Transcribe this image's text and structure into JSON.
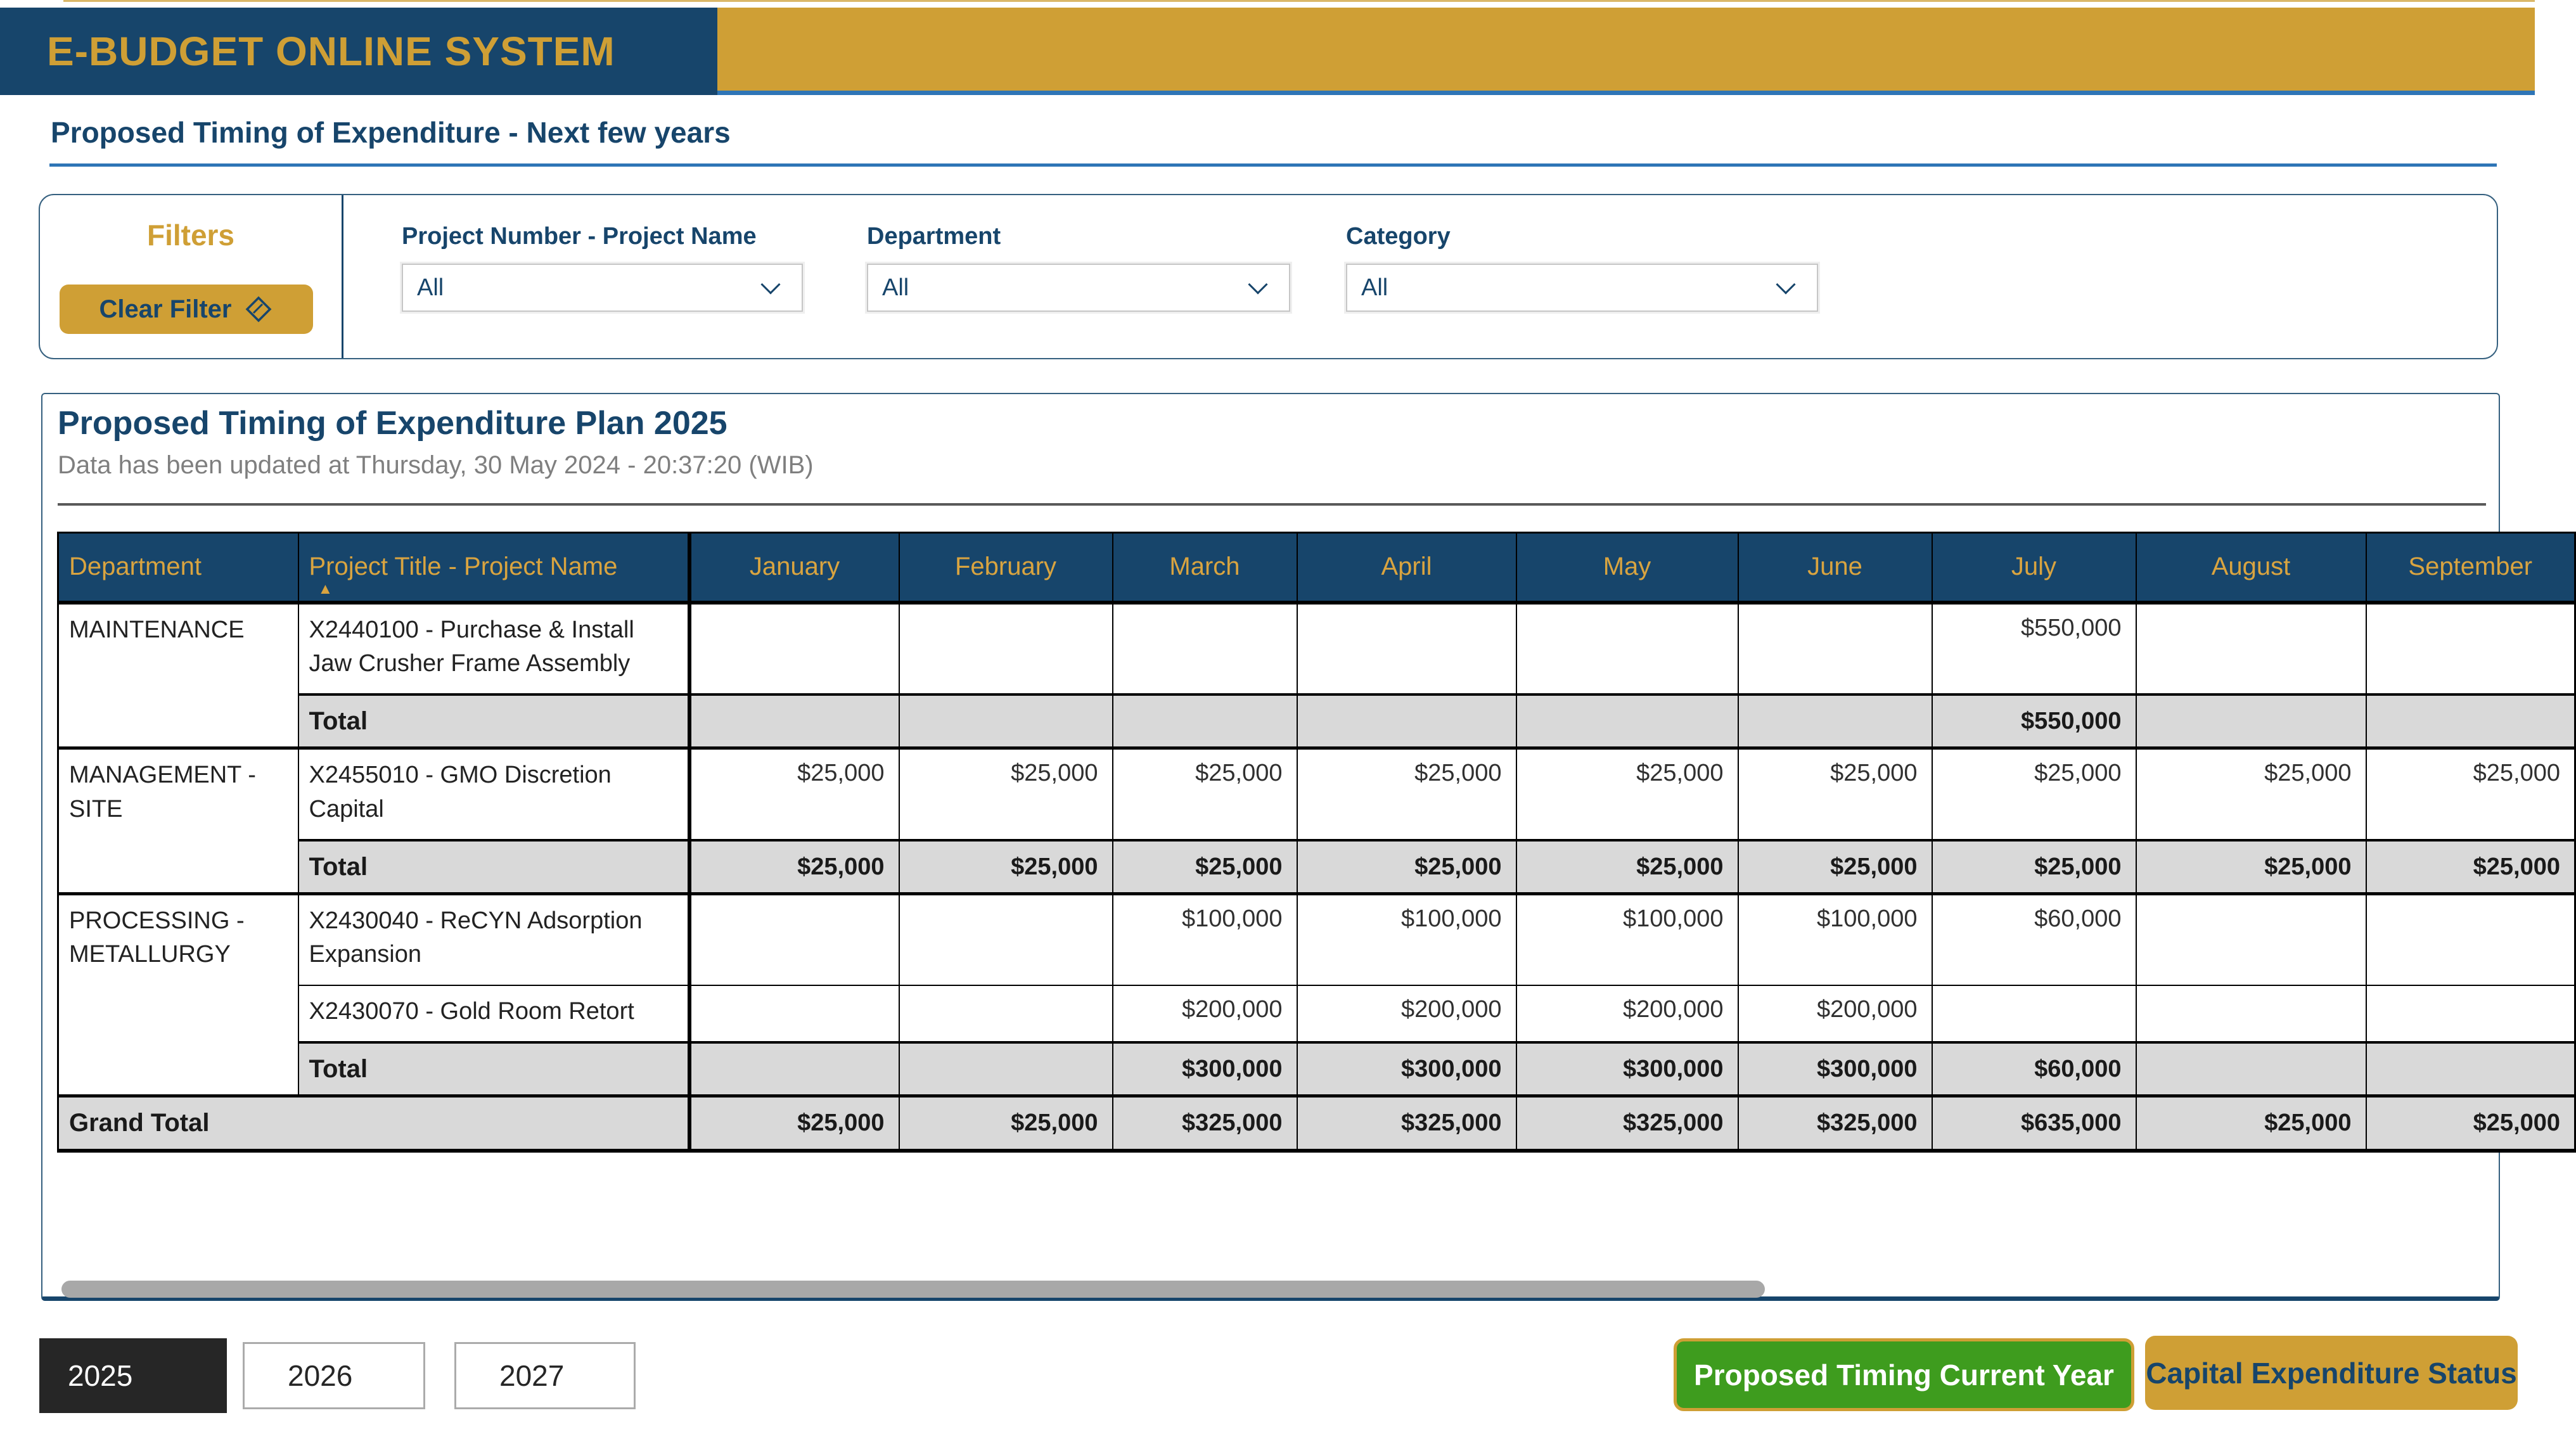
{
  "app": {
    "title": "E-BUDGET ONLINE SYSTEM"
  },
  "page": {
    "subtitle": "Proposed Timing of Expenditure - Next few years"
  },
  "filters": {
    "panel_title": "Filters",
    "clear_button_label": "Clear Filter",
    "fields": [
      {
        "label": "Project Number - Project Name",
        "value": "All"
      },
      {
        "label": "Department",
        "value": "All"
      },
      {
        "label": "Category",
        "value": "All"
      }
    ]
  },
  "report": {
    "title": "Proposed Timing of Expenditure Plan 2025",
    "updated_note": "Data has been updated at Thursday, 30 May 2024 - 20:37:20 (WIB)",
    "table": {
      "columns": [
        "Department",
        "Project Title - Project Name",
        "January",
        "February",
        "March",
        "April",
        "May",
        "June",
        "July",
        "August",
        "September"
      ],
      "sort": {
        "column": "Project Title - Project Name",
        "direction": "ascending"
      },
      "total_label": "Total",
      "groups": [
        {
          "department": "MAINTENANCE",
          "projects": [
            {
              "name": "X2440100 - Purchase & Install Jaw Crusher Frame Assembly",
              "values": [
                "",
                "",
                "",
                "",
                "",
                "",
                "$550,000",
                "",
                ""
              ]
            }
          ],
          "total": [
            "",
            "",
            "",
            "",
            "",
            "",
            "$550,000",
            "",
            ""
          ]
        },
        {
          "department": "MANAGEMENT - SITE",
          "projects": [
            {
              "name": "X2455010 - GMO Discretion Capital",
              "values": [
                "$25,000",
                "$25,000",
                "$25,000",
                "$25,000",
                "$25,000",
                "$25,000",
                "$25,000",
                "$25,000",
                "$25,000"
              ]
            }
          ],
          "total": [
            "$25,000",
            "$25,000",
            "$25,000",
            "$25,000",
            "$25,000",
            "$25,000",
            "$25,000",
            "$25,000",
            "$25,000"
          ]
        },
        {
          "department": "PROCESSING - METALLURGY",
          "projects": [
            {
              "name": "X2430040 - ReCYN Adsorption Expansion",
              "values": [
                "",
                "",
                "$100,000",
                "$100,000",
                "$100,000",
                "$100,000",
                "$60,000",
                "",
                ""
              ]
            },
            {
              "name": "X2430070 - Gold Room Retort",
              "values": [
                "",
                "",
                "$200,000",
                "$200,000",
                "$200,000",
                "$200,000",
                "",
                "",
                ""
              ]
            }
          ],
          "total": [
            "",
            "",
            "$300,000",
            "$300,000",
            "$300,000",
            "$300,000",
            "$60,000",
            "",
            ""
          ]
        }
      ],
      "grand_total": {
        "label": "Grand Total",
        "values": [
          "$25,000",
          "$25,000",
          "$325,000",
          "$325,000",
          "$325,000",
          "$325,000",
          "$635,000",
          "$25,000",
          "$25,000"
        ]
      }
    }
  },
  "year_tabs": [
    {
      "label": "2025",
      "selected": true
    },
    {
      "label": "2026",
      "selected": false
    },
    {
      "label": "2027",
      "selected": false
    }
  ],
  "actions": {
    "proposed_timing_label": "Proposed Timing Current Year",
    "capex_status_label": "Capital Expenditure Status"
  },
  "colors": {
    "navy": "#17456B",
    "gold": "#CF9F35",
    "header_text_gold": "#D9A440",
    "accent_blue": "#2E75B6",
    "green": "#3E9C1E",
    "total_row_bg": "#D9D9D9",
    "selected_year_bg": "#262626",
    "scrollbar_thumb": "#A8A8A8"
  }
}
